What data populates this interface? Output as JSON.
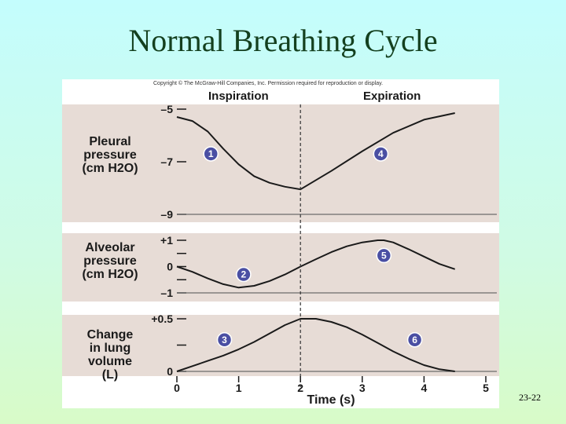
{
  "slide": {
    "title": "Normal Breathing Cycle",
    "number": "23-22"
  },
  "figure": {
    "copyright": "Copyright © The McGraw-Hill Companies, Inc. Permission required for reproduction or display.",
    "phase_labels": [
      "Inspiration",
      "Expiration"
    ],
    "divider_x": 2
  },
  "colors": {
    "panel_bg": "#e7dcd6",
    "curve": "#1a1a1a",
    "badge": "#4a4fa3"
  },
  "chart_data": [
    {
      "type": "line",
      "title": "",
      "ylabel_lines": [
        "Pleural",
        "pressure",
        "(cm H2O)"
      ],
      "xlabel": "",
      "xlim": [
        0,
        5
      ],
      "ylim": [
        -9,
        -5
      ],
      "yticks": [
        -5,
        -7,
        -9
      ],
      "ytick_labels": [
        "–5",
        "–7",
        "–9"
      ],
      "minor_yticks": [],
      "series": [
        {
          "x": [
            0,
            0.25,
            0.5,
            0.75,
            1,
            1.25,
            1.5,
            1.75,
            2,
            2.5,
            3,
            3.5,
            4,
            4.5
          ],
          "y": [
            -5.3,
            -5.45,
            -5.85,
            -6.5,
            -7.1,
            -7.55,
            -7.8,
            -7.95,
            -8.05,
            -7.35,
            -6.6,
            -5.9,
            -5.4,
            -5.15
          ]
        }
      ],
      "badges": [
        {
          "label": "1",
          "x": 0.55,
          "y": -6.7
        },
        {
          "label": "4",
          "x": 3.3,
          "y": -6.7
        }
      ]
    },
    {
      "type": "line",
      "title": "",
      "ylabel_lines": [
        "Alveolar",
        "pressure",
        "(cm H2O)"
      ],
      "xlabel": "",
      "xlim": [
        0,
        5
      ],
      "ylim": [
        -1,
        1
      ],
      "yticks": [
        1,
        0,
        -1
      ],
      "ytick_labels": [
        "+1",
        "0",
        "–1"
      ],
      "minor_yticks": [
        0.5,
        -0.5
      ],
      "series": [
        {
          "x": [
            0,
            0.25,
            0.5,
            0.75,
            1,
            1.25,
            1.5,
            1.75,
            2,
            2.25,
            2.5,
            2.75,
            3,
            3.25,
            3.35,
            3.5,
            3.75,
            4,
            4.25,
            4.5
          ],
          "y": [
            0,
            -0.2,
            -0.45,
            -0.67,
            -0.8,
            -0.73,
            -0.55,
            -0.3,
            0,
            0.28,
            0.55,
            0.77,
            0.92,
            1.0,
            1.0,
            0.92,
            0.66,
            0.38,
            0.1,
            -0.1
          ]
        }
      ],
      "badges": [
        {
          "label": "2",
          "x": 1.08,
          "y": -0.3
        },
        {
          "label": "5",
          "x": 3.35,
          "y": 0.42
        }
      ]
    },
    {
      "type": "line",
      "title": "",
      "ylabel_lines": [
        "Change",
        "in lung",
        "volume",
        "(L)"
      ],
      "xlabel": "Time (s)",
      "xlim": [
        0,
        5
      ],
      "ylim": [
        0,
        0.5
      ],
      "yticks": [
        0.5,
        0
      ],
      "ytick_labels": [
        "+0.5",
        "0"
      ],
      "minor_yticks": [
        0.25
      ],
      "xticks": [
        0,
        1,
        2,
        3,
        4,
        5
      ],
      "xtick_labels": [
        "0",
        "1",
        "2",
        "3",
        "4",
        "5"
      ],
      "series": [
        {
          "x": [
            0,
            0.25,
            0.5,
            0.75,
            1,
            1.25,
            1.5,
            1.75,
            2,
            2.25,
            2.5,
            2.75,
            3,
            3.25,
            3.5,
            3.75,
            4,
            4.25,
            4.5
          ],
          "y": [
            0,
            0.05,
            0.1,
            0.15,
            0.21,
            0.28,
            0.36,
            0.44,
            0.5,
            0.5,
            0.47,
            0.42,
            0.35,
            0.27,
            0.19,
            0.12,
            0.06,
            0.02,
            0
          ]
        }
      ],
      "badges": [
        {
          "label": "3",
          "x": 0.77,
          "y": 0.3
        },
        {
          "label": "6",
          "x": 3.85,
          "y": 0.3
        }
      ]
    }
  ]
}
